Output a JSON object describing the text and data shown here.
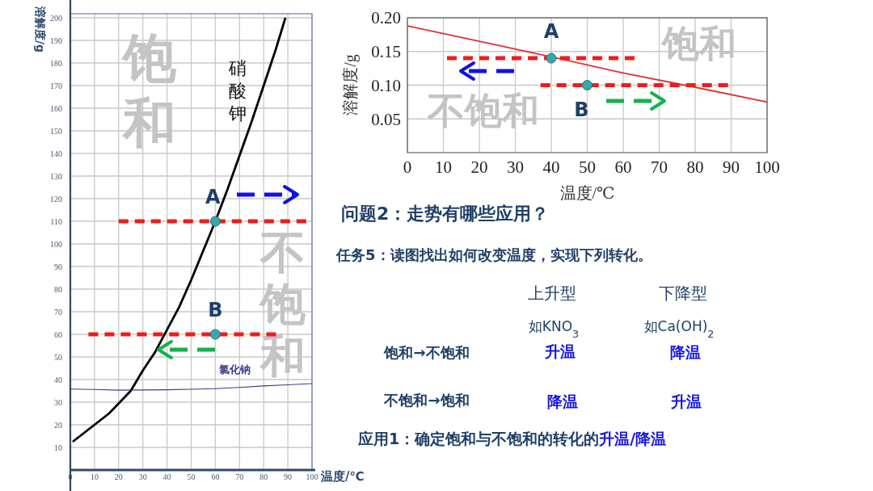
{
  "chart_data": [
    {
      "type": "line",
      "xlabel": "温度/℃",
      "ylabel": "溶解度/g",
      "xlim": [
        0,
        100
      ],
      "ylim": [
        0,
        200
      ],
      "xticks": [
        0,
        10,
        20,
        30,
        40,
        50,
        60,
        70,
        80,
        90,
        100
      ],
      "yticks": [
        10,
        20,
        30,
        40,
        50,
        60,
        70,
        80,
        90,
        100,
        110,
        120,
        130,
        140,
        150,
        160,
        170,
        180,
        190,
        200
      ],
      "grid": true,
      "series": [
        {
          "name": "硝酸钾",
          "type": "line",
          "color": "#000000",
          "marker": "none",
          "x": [
            1,
            10,
            16,
            25,
            30,
            35,
            40,
            45,
            50,
            55,
            60,
            65,
            70,
            75,
            80,
            85,
            89
          ],
          "values": [
            12.5,
            20,
            25,
            35,
            44,
            52,
            62,
            72,
            84,
            97,
            110,
            124,
            139,
            154,
            170,
            186,
            200
          ]
        },
        {
          "name": "氯化钠",
          "type": "line",
          "color": "#3b3b8f",
          "marker": "none",
          "x": [
            0,
            10,
            20,
            30,
            40,
            50,
            60,
            70,
            80,
            90,
            100
          ],
          "values": [
            35.8,
            35.6,
            35.3,
            35.4,
            35.5,
            35.7,
            36,
            36.5,
            37.2,
            37.7,
            38.2
          ]
        },
        {
          "type": "line",
          "color": "#ee1c1c",
          "line_style": "dashed",
          "marker": "none",
          "x": [
            20,
            100
          ],
          "values": [
            110,
            110
          ]
        },
        {
          "type": "line",
          "color": "#ee1c1c",
          "line_style": "dashed",
          "marker": "none",
          "x": [
            7.5,
            85.5
          ],
          "values": [
            60,
            60
          ]
        },
        {
          "type": "scatter",
          "color": "#3aa8a8",
          "marker": "circle",
          "x": [
            60,
            60
          ],
          "values": [
            110,
            60
          ]
        }
      ],
      "annotations": [
        "饱和",
        "不饱和",
        {
          "text": "A",
          "x": 60,
          "y": 110
        },
        {
          "text": "B",
          "x": 60,
          "y": 60
        }
      ]
    },
    {
      "type": "line",
      "xlabel": "温度/℃",
      "ylabel": "溶解度/g",
      "xlim": [
        0,
        100
      ],
      "ylim": [
        0,
        0.2
      ],
      "xticks": [
        0,
        10,
        20,
        30,
        40,
        50,
        60,
        70,
        80,
        90,
        100
      ],
      "yticks": [
        0.05,
        {
          "value": 0.1,
          "label": "0.10"
        },
        0.15,
        {
          "value": 0.2,
          "label": "0.20"
        }
      ],
      "grid": true,
      "series": [
        {
          "type": "line",
          "color": "#e03030",
          "marker": "none",
          "x": [
            0,
            20,
            40,
            60,
            80,
            100
          ],
          "values": [
            0.188,
            0.165,
            0.142,
            0.118,
            0.097,
            0.075
          ]
        },
        {
          "type": "line",
          "color": "#ee1c1c",
          "line_style": "dashed",
          "marker": "none",
          "x": [
            11,
            64
          ],
          "values": [
            0.14,
            0.14
          ]
        },
        {
          "type": "line",
          "color": "#ee1c1c",
          "line_style": "dashed",
          "marker": "none",
          "x": [
            37,
            90
          ],
          "values": [
            0.1,
            0.1
          ]
        },
        {
          "type": "scatter",
          "color": "#3aa8a8",
          "marker": "circle",
          "x": [
            40,
            50
          ],
          "values": [
            0.14,
            0.1
          ]
        }
      ],
      "annotations": [
        "饱和",
        "不饱和",
        {
          "text": "A",
          "x": 40,
          "y": 0.14
        },
        {
          "text": "B",
          "x": 50,
          "y": 0.1
        }
      ]
    },
    {
      "type": "other",
      "title": "问题2：走势有哪些应用？",
      "subtitle": "任务5：读图找出如何改变温度，实现下列转化。",
      "annotations": [
        "上升型",
        "下降型",
        "如KNO$_{3}$",
        "如Ca(OH)$_{2}$",
        "饱和→不饱和",
        "升温",
        "降温",
        "不饱和→饱和",
        "降温",
        "升温",
        "应用1：确定饱和与不饱和的转化的",
        "升温/降温"
      ]
    }
  ]
}
